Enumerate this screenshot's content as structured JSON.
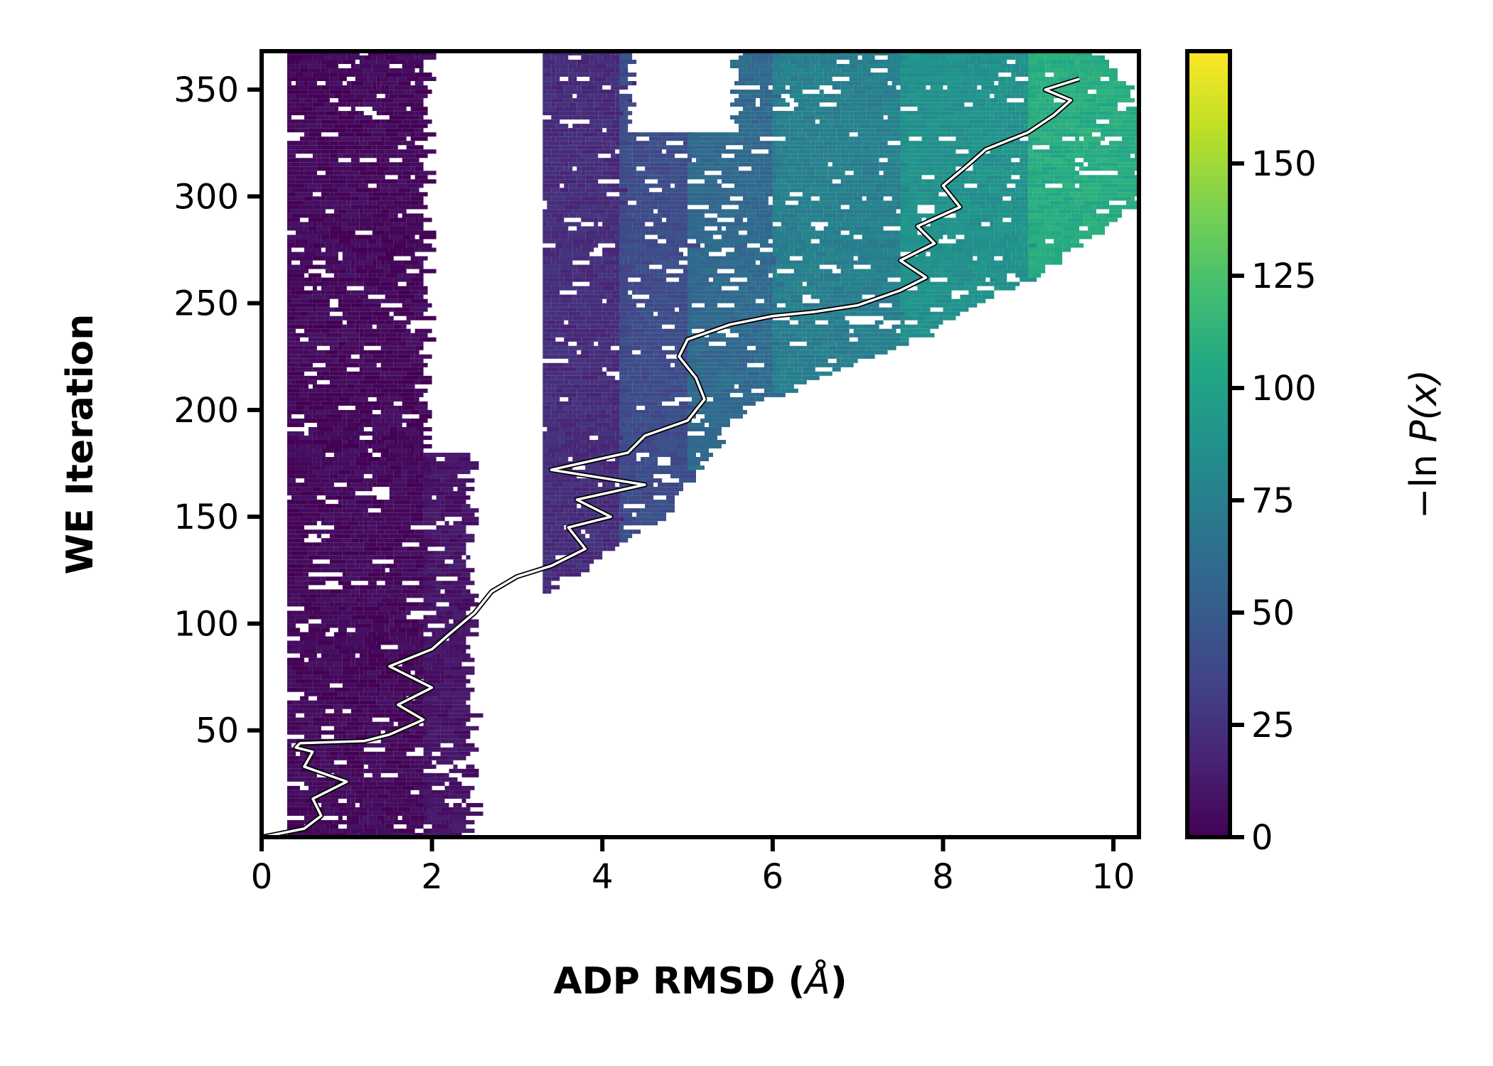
{
  "chart_data": {
    "type": "heatmap",
    "title": "",
    "xlabel": "ADP RMSD (",
    "xlabel_unit": "Å",
    "xlabel_close": ")",
    "ylabel": "WE Iteration",
    "xlim": [
      0,
      10.3
    ],
    "ylim": [
      0,
      368
    ],
    "x_ticks": [
      0,
      2,
      4,
      6,
      8,
      10
    ],
    "x_tick_labels": [
      "0",
      "2",
      "4",
      "6",
      "8",
      "10"
    ],
    "y_ticks": [
      50,
      100,
      150,
      200,
      250,
      300,
      350
    ],
    "y_tick_labels": [
      "50",
      "100",
      "150",
      "200",
      "250",
      "300",
      "350"
    ],
    "grid": false,
    "colorbar": {
      "colormap": "viridis",
      "range": [
        0,
        175
      ],
      "ticks": [
        0,
        25,
        50,
        75,
        100,
        125,
        150
      ],
      "tick_labels": [
        "0",
        "25",
        "50",
        "75",
        "100",
        "125",
        "150"
      ],
      "label_prefix": "−ln ",
      "label_var": "P(x)"
    },
    "density_bands": [
      {
        "x0": 0.3,
        "x1": 1.9,
        "value": 4
      },
      {
        "x0": 1.9,
        "x1": 2.4,
        "value": 9
      },
      {
        "x0": 3.3,
        "x1": 4.2,
        "value": 22
      },
      {
        "x0": 4.2,
        "x1": 5.0,
        "value": 40
      },
      {
        "x0": 5.0,
        "x1": 6.0,
        "value": 60
      },
      {
        "x0": 6.0,
        "x1": 7.5,
        "value": 75
      },
      {
        "x0": 7.5,
        "x1": 9.0,
        "value": 88
      },
      {
        "x0": 9.0,
        "x1": 10.3,
        "value": 108
      }
    ],
    "occupied_profile": [
      [
        0,
        2.4
      ],
      [
        40,
        2.9
      ],
      [
        80,
        2.5
      ],
      [
        120,
        3.5
      ],
      [
        150,
        4.7
      ],
      [
        170,
        5.0
      ],
      [
        200,
        5.6
      ],
      [
        230,
        7.5
      ],
      [
        260,
        9.0
      ],
      [
        300,
        10.3
      ],
      [
        340,
        10.3
      ],
      [
        368,
        9.8
      ]
    ],
    "gaps": [
      {
        "x0": 1.9,
        "x1": 3.3,
        "y0": 180,
        "y1": 368
      },
      {
        "x0": 1.9,
        "x1": 3.3,
        "y0": 240,
        "y1": 280
      },
      {
        "x0": 4.3,
        "x1": 5.5,
        "y0": 330,
        "y1": 368
      }
    ],
    "series": [
      {
        "type": "line",
        "color": "#ffffff",
        "points": [
          [
            0.0,
            0
          ],
          [
            0.5,
            4
          ],
          [
            0.7,
            10
          ],
          [
            0.6,
            18
          ],
          [
            1.0,
            26
          ],
          [
            0.5,
            33
          ],
          [
            0.6,
            40
          ],
          [
            0.4,
            42
          ],
          [
            0.45,
            44
          ],
          [
            1.2,
            45
          ],
          [
            1.5,
            48
          ],
          [
            1.9,
            55
          ],
          [
            1.6,
            62
          ],
          [
            2.0,
            70
          ],
          [
            1.5,
            80
          ],
          [
            2.0,
            88
          ],
          [
            2.2,
            95
          ],
          [
            2.5,
            105
          ],
          [
            2.7,
            115
          ],
          [
            3.0,
            122
          ],
          [
            3.4,
            127
          ],
          [
            3.8,
            135
          ],
          [
            3.6,
            145
          ],
          [
            4.1,
            150
          ],
          [
            3.7,
            158
          ],
          [
            4.5,
            165
          ],
          [
            3.4,
            172
          ],
          [
            4.3,
            180
          ],
          [
            4.5,
            188
          ],
          [
            5.0,
            195
          ],
          [
            5.2,
            205
          ],
          [
            5.1,
            215
          ],
          [
            4.9,
            225
          ],
          [
            5.0,
            233
          ],
          [
            5.5,
            240
          ],
          [
            6.0,
            244
          ],
          [
            6.5,
            246
          ],
          [
            7.0,
            249
          ],
          [
            7.5,
            256
          ],
          [
            7.8,
            262
          ],
          [
            7.5,
            270
          ],
          [
            7.9,
            278
          ],
          [
            7.7,
            286
          ],
          [
            8.2,
            295
          ],
          [
            8.0,
            305
          ],
          [
            8.3,
            315
          ],
          [
            8.5,
            322
          ],
          [
            9.0,
            330
          ],
          [
            9.3,
            338
          ],
          [
            9.5,
            345
          ],
          [
            9.2,
            350
          ],
          [
            9.6,
            355
          ]
        ]
      }
    ]
  }
}
